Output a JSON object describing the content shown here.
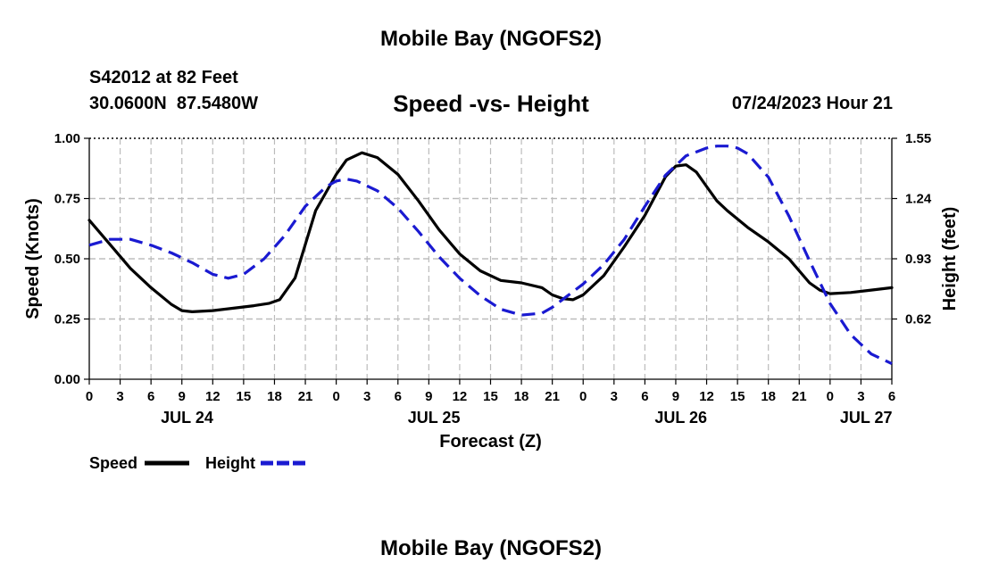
{
  "page": {
    "title": "Mobile Bay (NGOFS2)",
    "bottom_title": "Mobile Bay (NGOFS2)",
    "station": "S42012 at 82 Feet",
    "coords": "30.0600N  87.5480W",
    "chart_heading": "Speed -vs- Height",
    "datetime": "07/24/2023 Hour 21"
  },
  "colors": {
    "speed": "#000000",
    "height": "#1a1ad1",
    "grid": "#bbbbbb"
  },
  "chart_data": {
    "type": "line",
    "title": "Speed -vs- Height",
    "xlabel": "Forecast (Z)",
    "ylabel": "Speed (Knots)",
    "y2label": "Height (feet)",
    "x_unit": "hours since 2023-07-24 00Z",
    "xlim": [
      0,
      78
    ],
    "ylim": [
      0,
      1
    ],
    "y2lim": [
      0.31,
      1.55
    ],
    "x_ticks": [
      0,
      3,
      6,
      9,
      12,
      15,
      18,
      21,
      24,
      27,
      30,
      33,
      36,
      39,
      42,
      45,
      48,
      51,
      54,
      57,
      60,
      63,
      66,
      69,
      72,
      75,
      78
    ],
    "x_tick_labels": [
      "0",
      "3",
      "6",
      "9",
      "12",
      "15",
      "18",
      "21",
      "0",
      "3",
      "6",
      "9",
      "12",
      "15",
      "18",
      "21",
      "0",
      "3",
      "6",
      "9",
      "12",
      "15",
      "18",
      "21",
      "0",
      "3",
      "6"
    ],
    "date_labels": [
      {
        "x": 9.5,
        "label": "JUL 24"
      },
      {
        "x": 33.5,
        "label": "JUL 25"
      },
      {
        "x": 57.5,
        "label": "JUL 26"
      },
      {
        "x": 75.5,
        "label": "JUL 27"
      }
    ],
    "y_ticks": [
      0,
      0.25,
      0.5,
      0.75,
      1.0
    ],
    "y_tick_labels": [
      "0.00",
      "0.25",
      "0.50",
      "0.75",
      "1.00"
    ],
    "y2_ticks": [
      0.62,
      0.93,
      1.24,
      1.55
    ],
    "y2_tick_labels": [
      "0.62",
      "0.93",
      "1.24",
      "1.55"
    ],
    "grid": true,
    "series": [
      {
        "name": "Speed",
        "axis": "left",
        "style": "solid",
        "x": [
          0,
          2,
          4,
          6,
          8,
          9,
          10,
          12,
          14,
          16,
          17.5,
          18.5,
          20,
          22,
          24,
          25,
          26.5,
          28,
          30,
          32,
          34,
          36,
          38,
          40,
          42,
          44,
          45,
          46,
          47,
          48,
          50,
          52,
          54,
          56,
          57,
          58,
          59,
          60,
          61,
          62,
          64,
          66,
          68,
          70,
          71,
          72,
          74,
          76,
          78
        ],
        "values": [
          0.66,
          0.56,
          0.46,
          0.38,
          0.31,
          0.285,
          0.28,
          0.285,
          0.295,
          0.305,
          0.315,
          0.33,
          0.42,
          0.7,
          0.85,
          0.91,
          0.94,
          0.92,
          0.85,
          0.74,
          0.62,
          0.52,
          0.45,
          0.41,
          0.4,
          0.38,
          0.35,
          0.335,
          0.33,
          0.35,
          0.43,
          0.55,
          0.68,
          0.84,
          0.885,
          0.89,
          0.86,
          0.8,
          0.74,
          0.7,
          0.63,
          0.57,
          0.5,
          0.4,
          0.37,
          0.355,
          0.36,
          0.37,
          0.38
        ]
      },
      {
        "name": "Height",
        "axis": "right",
        "style": "dashed",
        "x": [
          0,
          2,
          4,
          6,
          8,
          10,
          12,
          13.5,
          15,
          17,
          19,
          21,
          23,
          24,
          25,
          26,
          28,
          30,
          32,
          34,
          36,
          38,
          40,
          42,
          44,
          45,
          46,
          47,
          48,
          50,
          52,
          54,
          56,
          58,
          60,
          61,
          62,
          63,
          64,
          66,
          68,
          70,
          72,
          74,
          76,
          78
        ],
        "values": [
          1.0,
          1.03,
          1.03,
          1.0,
          0.96,
          0.91,
          0.85,
          0.83,
          0.85,
          0.93,
          1.05,
          1.2,
          1.3,
          1.33,
          1.34,
          1.33,
          1.28,
          1.19,
          1.07,
          0.94,
          0.83,
          0.74,
          0.67,
          0.64,
          0.65,
          0.68,
          0.72,
          0.76,
          0.8,
          0.9,
          1.03,
          1.2,
          1.36,
          1.46,
          1.5,
          1.51,
          1.51,
          1.5,
          1.47,
          1.35,
          1.15,
          0.92,
          0.7,
          0.54,
          0.44,
          0.39
        ]
      }
    ],
    "legend": [
      {
        "label": "Speed",
        "style": "solid"
      },
      {
        "label": "Height",
        "style": "dashed"
      }
    ],
    "legend_position": "bottom-left"
  }
}
